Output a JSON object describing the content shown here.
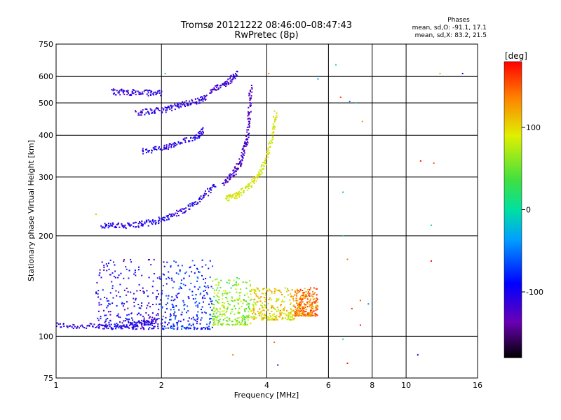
{
  "chart_data": {
    "type": "scatter",
    "title": "Tromsø 20121222 08:46:00–08:47:43",
    "subtitle": "RwPretec (8p)",
    "xlabel": "Frequency [MHz]",
    "ylabel": "Stationary phase Virtual Height [km]",
    "x_scale": "log",
    "y_scale": "log",
    "xlim": [
      1,
      16
    ],
    "ylim": [
      75,
      750
    ],
    "x_ticks": [
      1,
      2,
      4,
      6,
      8,
      10,
      16
    ],
    "x_tick_labels": [
      "1",
      "2",
      "4",
      "6",
      "8",
      "10",
      "16"
    ],
    "y_ticks": [
      75,
      100,
      200,
      300,
      400,
      500,
      600,
      750
    ],
    "y_tick_labels": [
      "75",
      "100",
      "200",
      "300",
      "400",
      "500",
      "600",
      "750"
    ],
    "grid": true,
    "stats": {
      "heading": "Phases",
      "line_o": "mean, sd,O: -91.1, 17.1",
      "line_x": "mean, sd,X: 83.2, 21.5"
    },
    "colorbar": {
      "label": "[deg]",
      "range": [
        -180,
        180
      ],
      "ticks": [
        100,
        0,
        -100
      ],
      "tick_labels": [
        "100",
        "0",
        "-100"
      ]
    },
    "traces": [
      {
        "x": [
          1.0,
          1.2,
          1.45,
          1.65,
          1.8,
          1.95
        ],
        "y": [
          108,
          107,
          107,
          108,
          110,
          111
        ],
        "phase": -110
      },
      {
        "x": [
          1.35,
          1.5,
          1.7,
          1.9,
          2.1,
          2.35,
          2.6,
          2.85
        ],
        "y": [
          215,
          214,
          216,
          220,
          228,
          240,
          258,
          285
        ],
        "phase": -105
      },
      {
        "x": [
          1.75,
          2.0,
          2.2,
          2.5,
          2.65
        ],
        "y": [
          358,
          365,
          375,
          395,
          415
        ],
        "phase": -105
      },
      {
        "x": [
          1.7,
          1.9,
          2.1,
          2.3,
          2.5,
          2.7
        ],
        "y": [
          468,
          472,
          480,
          495,
          505,
          520
        ],
        "phase": -110
      },
      {
        "x": [
          1.45,
          1.6,
          1.8,
          2.0
        ],
        "y": [
          540,
          538,
          536,
          535
        ],
        "phase": -110
      },
      {
        "x": [
          2.75,
          2.95,
          3.15,
          3.3
        ],
        "y": [
          545,
          560,
          585,
          615
        ],
        "phase": -115
      },
      {
        "x": [
          3.0,
          3.2,
          3.35,
          3.45,
          3.52,
          3.57,
          3.6
        ],
        "y": [
          285,
          305,
          330,
          360,
          400,
          470,
          560
        ],
        "phase": -125
      },
      {
        "x": [
          3.05,
          3.3,
          3.55,
          3.8,
          4.0,
          4.15,
          4.25
        ],
        "y": [
          258,
          265,
          280,
          305,
          340,
          400,
          470
        ],
        "phase": 90
      }
    ],
    "clusters": [
      {
        "x_range": [
          1.3,
          2.0
        ],
        "y_range": [
          105,
          170
        ],
        "phase": -105
      },
      {
        "x_range": [
          2.0,
          2.8
        ],
        "y_range": [
          105,
          170
        ],
        "phase": -80
      },
      {
        "x_range": [
          2.8,
          3.6
        ],
        "y_range": [
          108,
          150
        ],
        "phase": 60
      },
      {
        "x_range": [
          3.6,
          4.8
        ],
        "y_range": [
          112,
          140
        ],
        "phase": 100
      },
      {
        "x_range": [
          4.8,
          5.6
        ],
        "y_range": [
          115,
          140
        ],
        "phase": 140
      }
    ],
    "scattered": [
      {
        "x": 6.3,
        "y": 650,
        "phase": 10
      },
      {
        "x": 5.6,
        "y": 590,
        "phase": -30
      },
      {
        "x": 6.5,
        "y": 520,
        "phase": 160
      },
      {
        "x": 6.9,
        "y": 505,
        "phase": -60
      },
      {
        "x": 7.2,
        "y": 500,
        "phase": 5
      },
      {
        "x": 7.5,
        "y": 440,
        "phase": 130
      },
      {
        "x": 12.0,
        "y": 330,
        "phase": 150
      },
      {
        "x": 11.0,
        "y": 335,
        "phase": 170
      },
      {
        "x": 6.6,
        "y": 270,
        "phase": -20
      },
      {
        "x": 11.8,
        "y": 215,
        "phase": -10
      },
      {
        "x": 6.6,
        "y": 200,
        "phase": -10
      },
      {
        "x": 6.8,
        "y": 170,
        "phase": 140
      },
      {
        "x": 11.8,
        "y": 168,
        "phase": 180
      },
      {
        "x": 7.4,
        "y": 128,
        "phase": 155
      },
      {
        "x": 7.8,
        "y": 125,
        "phase": -40
      },
      {
        "x": 7.0,
        "y": 121,
        "phase": 165
      },
      {
        "x": 7.4,
        "y": 108,
        "phase": 175
      },
      {
        "x": 6.6,
        "y": 98,
        "phase": 0
      },
      {
        "x": 6.8,
        "y": 83,
        "phase": 170
      },
      {
        "x": 4.3,
        "y": 82,
        "phase": -110
      },
      {
        "x": 3.2,
        "y": 88,
        "phase": 130
      },
      {
        "x": 10.8,
        "y": 88,
        "phase": -120
      },
      {
        "x": 4.2,
        "y": 96,
        "phase": 150
      },
      {
        "x": 12.5,
        "y": 612,
        "phase": 120
      },
      {
        "x": 14.5,
        "y": 612,
        "phase": -90
      },
      {
        "x": 2.05,
        "y": 612,
        "phase": -10
      },
      {
        "x": 4.05,
        "y": 612,
        "phase": 140
      },
      {
        "x": 1.3,
        "y": 232,
        "phase": 110
      }
    ]
  }
}
